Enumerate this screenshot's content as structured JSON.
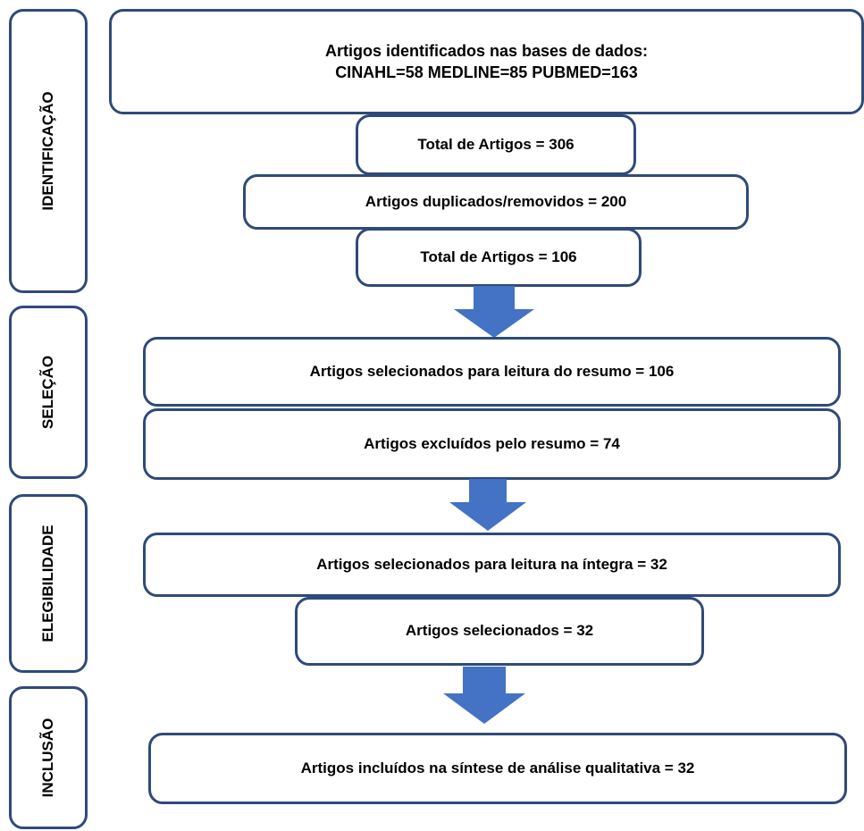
{
  "colors": {
    "border": "#2f4a7a",
    "arrow": "#4472c4"
  },
  "stages": {
    "identificacao": "IDENTIFICAÇÃO",
    "selecao": "SELEÇÃO",
    "elegibilidade": "ELEGIBILIDADE",
    "inclusao": "INCLUSÃO"
  },
  "boxes": {
    "identified_line1": "Artigos identificados nas bases de dados:",
    "identified_line2": "CINAHL=58 MEDLINE=85 PUBMED=163",
    "total_306": "Total de Artigos = 306",
    "duplicates": "Artigos duplicados/removidos = 200",
    "total_106": "Total de Artigos = 106",
    "abstract_selected": "Artigos selecionados para leitura do resumo = 106",
    "abstract_excluded": "Artigos excluídos pelo resumo = 74",
    "fulltext_selected": "Artigos selecionados para leitura na íntegra = 32",
    "selected": "Artigos selecionados = 32",
    "included": "Artigos incluídos na síntese de análise qualitativa = 32"
  }
}
